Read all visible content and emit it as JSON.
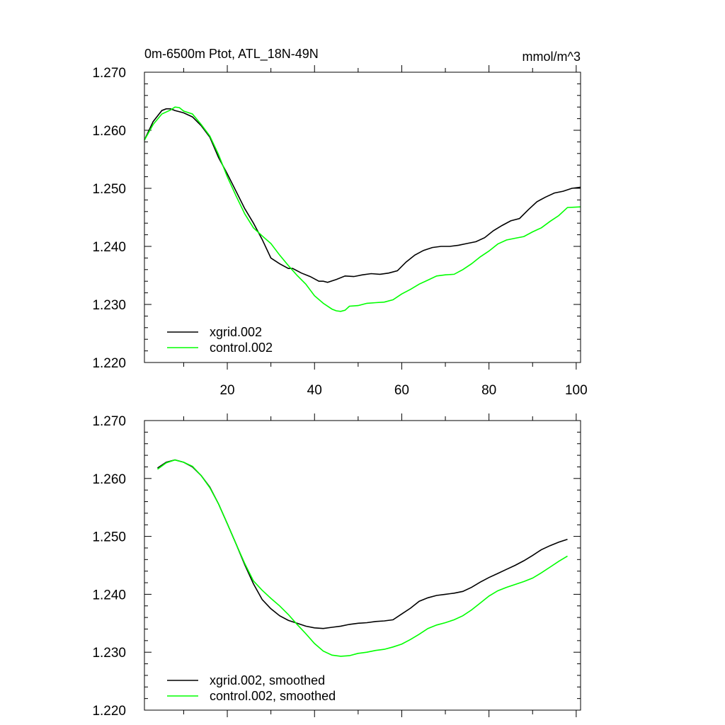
{
  "chart_data": [
    {
      "type": "line",
      "title": "0m-6500m Ptot, ATL_18N-49N",
      "units": "mmol/m^3",
      "xlabel": "",
      "ylabel": "",
      "xlim": [
        1,
        101
      ],
      "ylim": [
        1.22,
        1.27
      ],
      "x_ticks": [
        20,
        40,
        60,
        80,
        100
      ],
      "x_tick_labels": [
        "20",
        "40",
        "60",
        "80",
        "100"
      ],
      "y_ticks": [
        1.22,
        1.23,
        1.24,
        1.25,
        1.26,
        1.27
      ],
      "y_tick_labels": [
        "1.220",
        "1.230",
        "1.240",
        "1.250",
        "1.260",
        "1.270"
      ],
      "legend_position": "bottom-left",
      "series": [
        {
          "name": "xgrid.002",
          "color": "#000000",
          "x": [
            1,
            3,
            5,
            6,
            7,
            8,
            10,
            12,
            14,
            16,
            18,
            20,
            22,
            24,
            26,
            28,
            30,
            32,
            34,
            35,
            37,
            39,
            41,
            42,
            43,
            45,
            47,
            49,
            51,
            53,
            55,
            57,
            59,
            61,
            63,
            65,
            67,
            69,
            71,
            73,
            75,
            77,
            79,
            81,
            83,
            85,
            87,
            89,
            91,
            93,
            95,
            97,
            99,
            101
          ],
          "values": [
            1.2583,
            1.2615,
            1.2634,
            1.2637,
            1.2637,
            1.2634,
            1.263,
            1.2623,
            1.2608,
            1.2588,
            1.2553,
            1.2525,
            1.2495,
            1.2465,
            1.244,
            1.2412,
            1.238,
            1.237,
            1.2362,
            1.2362,
            1.2354,
            1.2348,
            1.234,
            1.234,
            1.2338,
            1.2343,
            1.2349,
            1.2348,
            1.2351,
            1.2353,
            1.2352,
            1.2354,
            1.2358,
            1.2373,
            1.2385,
            1.2393,
            1.2398,
            1.24,
            1.24,
            1.2402,
            1.2405,
            1.2408,
            1.2415,
            1.2427,
            1.2436,
            1.2444,
            1.2448,
            1.2463,
            1.2477,
            1.2485,
            1.2492,
            1.2495,
            1.25,
            1.2502
          ]
        },
        {
          "name": "control.002",
          "color": "#00ff00",
          "x": [
            1,
            3,
            5,
            7,
            8,
            9,
            10,
            12,
            14,
            16,
            18,
            20,
            22,
            24,
            26,
            28,
            30,
            32,
            34,
            36,
            38,
            40,
            42,
            44,
            45,
            46,
            47,
            48,
            50,
            52,
            54,
            56,
            58,
            60,
            62,
            64,
            66,
            68,
            70,
            72,
            74,
            76,
            78,
            80,
            82,
            84,
            86,
            88,
            90,
            92,
            94,
            96,
            98,
            101
          ],
          "values": [
            1.2583,
            1.261,
            1.2628,
            1.2635,
            1.264,
            1.2639,
            1.2633,
            1.2628,
            1.261,
            1.259,
            1.2558,
            1.252,
            1.2487,
            1.2456,
            1.2432,
            1.2418,
            1.2405,
            1.2385,
            1.2367,
            1.235,
            1.2335,
            1.2315,
            1.2302,
            1.2292,
            1.2289,
            1.2288,
            1.229,
            1.2297,
            1.2298,
            1.2302,
            1.2303,
            1.2304,
            1.2308,
            1.2318,
            1.2326,
            1.2335,
            1.2342,
            1.2349,
            1.2351,
            1.2352,
            1.236,
            1.237,
            1.2382,
            1.2392,
            1.2404,
            1.2411,
            1.2414,
            1.2417,
            1.2425,
            1.2432,
            1.2443,
            1.2453,
            1.2467,
            1.2468
          ]
        }
      ]
    },
    {
      "type": "line",
      "title": "",
      "xlabel": "",
      "ylabel": "",
      "xlim": [
        1,
        101
      ],
      "ylim": [
        1.22,
        1.27
      ],
      "x_ticks": [
        20,
        40,
        60,
        80,
        100
      ],
      "y_ticks": [
        1.22,
        1.23,
        1.24,
        1.25,
        1.26,
        1.27
      ],
      "y_tick_labels": [
        "1.220",
        "1.230",
        "1.240",
        "1.250",
        "1.260",
        "1.270"
      ],
      "legend_position": "bottom-left",
      "series": [
        {
          "name": "xgrid.002, smoothed",
          "color": "#000000",
          "x": [
            4,
            6,
            8,
            10,
            12,
            14,
            16,
            18,
            20,
            22,
            24,
            26,
            28,
            30,
            32,
            34,
            36,
            38,
            40,
            42,
            44,
            46,
            48,
            50,
            52,
            54,
            56,
            58,
            60,
            62,
            64,
            66,
            68,
            70,
            72,
            74,
            76,
            78,
            80,
            82,
            84,
            86,
            88,
            90,
            92,
            94,
            96,
            98
          ],
          "values": [
            1.2618,
            1.2628,
            1.2632,
            1.2628,
            1.262,
            1.2605,
            1.2585,
            1.2556,
            1.2522,
            1.2487,
            1.2451,
            1.2418,
            1.2391,
            1.2375,
            1.2363,
            1.2355,
            1.235,
            1.2345,
            1.2342,
            1.2341,
            1.2343,
            1.2345,
            1.2348,
            1.235,
            1.2351,
            1.2353,
            1.2354,
            1.2356,
            1.2366,
            1.2376,
            1.2388,
            1.2394,
            1.2398,
            1.24,
            1.2402,
            1.2405,
            1.2412,
            1.2421,
            1.2429,
            1.2436,
            1.2443,
            1.245,
            1.2458,
            1.2467,
            1.2477,
            1.2484,
            1.249,
            1.2495
          ]
        },
        {
          "name": "control.002, smoothed",
          "color": "#00ff00",
          "x": [
            4,
            6,
            8,
            10,
            12,
            14,
            16,
            18,
            20,
            22,
            24,
            26,
            28,
            30,
            32,
            34,
            36,
            38,
            40,
            42,
            44,
            46,
            48,
            50,
            52,
            54,
            56,
            58,
            60,
            62,
            64,
            66,
            68,
            70,
            72,
            74,
            76,
            78,
            80,
            82,
            84,
            86,
            88,
            90,
            92,
            94,
            96,
            98
          ],
          "values": [
            1.2616,
            1.2627,
            1.2632,
            1.2628,
            1.2621,
            1.2605,
            1.2584,
            1.2556,
            1.2522,
            1.2487,
            1.2453,
            1.2423,
            1.2407,
            1.2393,
            1.238,
            1.2365,
            1.2348,
            1.2332,
            1.2315,
            1.2302,
            1.2295,
            1.2293,
            1.2294,
            1.2298,
            1.23,
            1.2303,
            1.2305,
            1.2309,
            1.2314,
            1.2322,
            1.2331,
            1.2341,
            1.2347,
            1.2351,
            1.2356,
            1.2363,
            1.2373,
            1.2385,
            1.2397,
            1.2406,
            1.2412,
            1.2417,
            1.2422,
            1.2428,
            1.2437,
            1.2447,
            1.2457,
            1.2466
          ]
        }
      ]
    }
  ]
}
